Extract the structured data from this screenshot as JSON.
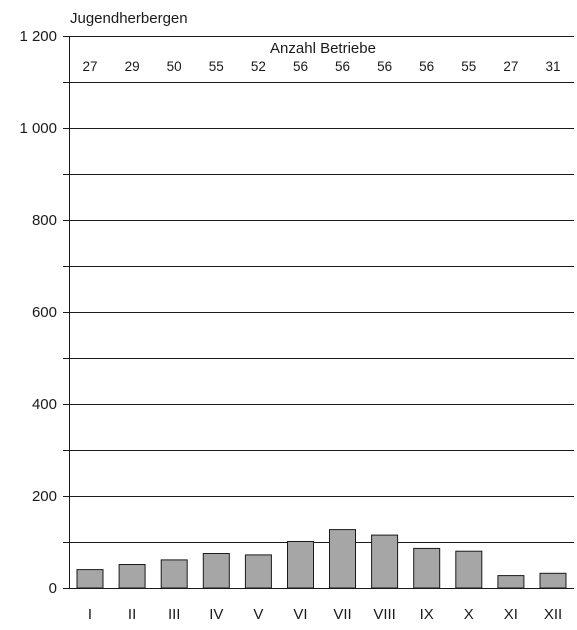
{
  "chart_data": {
    "type": "bar",
    "title": "Jugendherbergen",
    "subtitle": "Anzahl Betriebe",
    "categories": [
      "I",
      "II",
      "III",
      "IV",
      "V",
      "VI",
      "VII",
      "VIII",
      "IX",
      "X",
      "XI",
      "XII"
    ],
    "values": [
      40,
      51,
      61,
      75,
      72,
      101,
      127,
      115,
      86,
      80,
      27,
      32
    ],
    "counts": [
      "27",
      "29",
      "50",
      "55",
      "52",
      "56",
      "56",
      "56",
      "56",
      "55",
      "27",
      "31"
    ],
    "ylim": [
      0,
      1200
    ],
    "yticks": [
      {
        "value": 0,
        "label": "0"
      },
      {
        "value": 200,
        "label": "200"
      },
      {
        "value": 400,
        "label": "400"
      },
      {
        "value": 600,
        "label": "600"
      },
      {
        "value": 800,
        "label": "800"
      },
      {
        "value": 1000,
        "label": "1 000"
      },
      {
        "value": 1200,
        "label": "1 200"
      }
    ],
    "grid_step": 100,
    "grid": true,
    "legend": "none",
    "bar_color": "#a6a6a6"
  }
}
